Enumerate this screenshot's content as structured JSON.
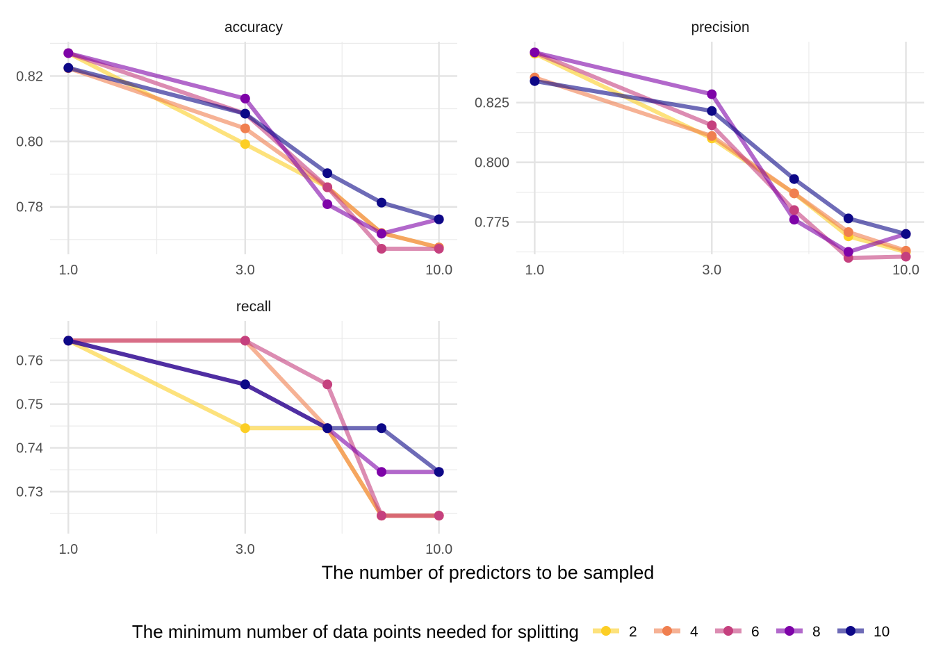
{
  "chart_data": {
    "type": "line",
    "xlabel": "The number of predictors to be sampled",
    "x_scale": "log10",
    "legend": {
      "title": "The minimum number of data points needed for splitting",
      "placement": "bottom",
      "entries": [
        "2",
        "4",
        "6",
        "8",
        "10"
      ]
    },
    "colors": {
      "2": "#FCCE25",
      "4": "#F07F4F",
      "6": "#C5407E",
      "8": "#7E03A8",
      "10": "#0D0887"
    },
    "x": [
      1,
      3,
      5,
      7,
      10
    ],
    "panels": [
      {
        "title": "accuracy",
        "xlim": [
          1,
          10
        ],
        "ylim": [
          0.7655,
          0.8305
        ],
        "yticks": [
          "0.78",
          "0.80",
          "0.82"
        ],
        "ytick_values": [
          0.78,
          0.8,
          0.82
        ],
        "xticks": [
          "1.0",
          "3.0",
          "10.0"
        ],
        "xtick_values": [
          1,
          3,
          10
        ],
        "series": [
          {
            "name": "2",
            "values": [
              0.827,
              0.7992,
              0.786,
              0.772,
              0.7676
            ]
          },
          {
            "name": "4",
            "values": [
              0.8224,
              0.804,
              0.786,
              0.772,
              0.7676
            ]
          },
          {
            "name": "6",
            "values": [
              0.827,
              0.8085,
              0.786,
              0.7672,
              0.7672
            ]
          },
          {
            "name": "8",
            "values": [
              0.827,
              0.8131,
              0.7808,
              0.7718,
              0.7762
            ]
          },
          {
            "name": "10",
            "values": [
              0.8225,
              0.8085,
              0.7903,
              0.7813,
              0.7762
            ]
          }
        ]
      },
      {
        "title": "precision",
        "xlim": [
          1,
          10
        ],
        "ylim": [
          0.7615,
          0.8505
        ],
        "yticks": [
          "0.775",
          "0.800",
          "0.825"
        ],
        "ytick_values": [
          0.775,
          0.8,
          0.825
        ],
        "xticks": [
          "1.0",
          "3.0",
          "10.0"
        ],
        "xtick_values": [
          1,
          3,
          10
        ],
        "series": [
          {
            "name": "2",
            "values": [
              0.8455,
              0.81,
              0.787,
              0.769,
              0.7625
            ]
          },
          {
            "name": "4",
            "values": [
              0.8355,
              0.811,
              0.787,
              0.7708,
              0.763
            ]
          },
          {
            "name": "6",
            "values": [
              0.846,
              0.8155,
              0.78,
              0.76,
              0.7605
            ]
          },
          {
            "name": "8",
            "values": [
              0.846,
              0.8285,
              0.776,
              0.7625,
              0.77
            ]
          },
          {
            "name": "10",
            "values": [
              0.834,
              0.8215,
              0.793,
              0.7765,
              0.77
            ]
          }
        ]
      },
      {
        "title": "recall",
        "xlim": [
          1,
          10
        ],
        "ylim": [
          0.7204,
          0.769
        ],
        "yticks": [
          "0.73",
          "0.74",
          "0.75",
          "0.76"
        ],
        "ytick_values": [
          0.73,
          0.74,
          0.75,
          0.76
        ],
        "xticks": [
          "1.0",
          "3.0",
          "10.0"
        ],
        "xtick_values": [
          1,
          3,
          10
        ],
        "series": [
          {
            "name": "2",
            "values": [
              0.7645,
              0.7445,
              0.7445,
              0.7245,
              0.7245
            ]
          },
          {
            "name": "4",
            "values": [
              0.7645,
              0.7645,
              0.7445,
              0.7245,
              0.7245
            ]
          },
          {
            "name": "6",
            "values": [
              0.7645,
              0.7645,
              0.7545,
              0.7245,
              0.7245
            ]
          },
          {
            "name": "8",
            "values": [
              0.7645,
              0.7545,
              0.7445,
              0.7345,
              0.7345
            ]
          },
          {
            "name": "10",
            "values": [
              0.7645,
              0.7545,
              0.7445,
              0.7445,
              0.7345
            ]
          }
        ]
      }
    ]
  }
}
